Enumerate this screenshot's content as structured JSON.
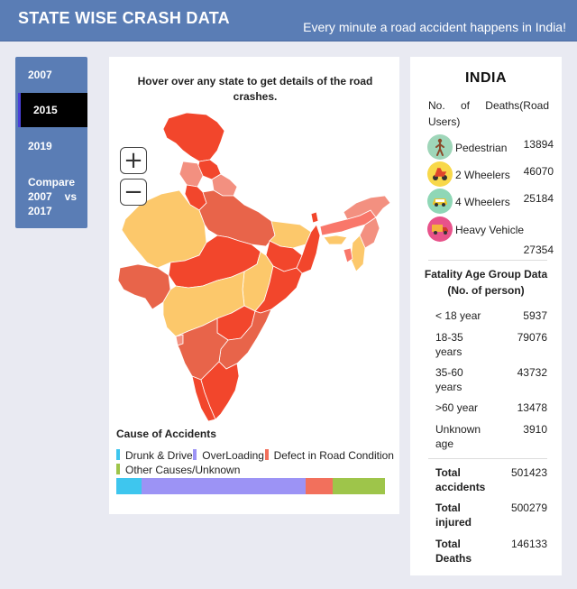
{
  "header": {
    "title": "STATE WISE CRASH DATA",
    "tagline": "Every minute a road accident happens in India!"
  },
  "nav": {
    "items": [
      {
        "label": "2007"
      },
      {
        "label": "2015",
        "active": true
      },
      {
        "label": "2019"
      },
      {
        "label_line1": "Compare",
        "label_line2a": "2007",
        "label_line2b": "vs",
        "label_line3": "2017"
      }
    ]
  },
  "map": {
    "hint": "Hover over any state to get details of the road crashes.",
    "zoom_in": "+",
    "zoom_out": "−",
    "colors": [
      "#f2462c",
      "#e8644a",
      "#f39080",
      "#fcc86b",
      "#f9776a"
    ]
  },
  "causes": {
    "title": "Cause of Accidents",
    "legend": [
      {
        "label": "Drunk & Drive",
        "color": "#3ec6ee"
      },
      {
        "label": "OverLoading",
        "color": "#9c93f5"
      },
      {
        "label": "Defect in Road Condition",
        "color": "#f2705c"
      },
      {
        "label": "Other Causes/Unknown",
        "color": "#9ec54a"
      }
    ],
    "shares": [
      0.095,
      0.61,
      0.1,
      0.195
    ]
  },
  "summary": {
    "country": "INDIA",
    "deaths_heading": "No. of Deaths(Road Users)",
    "road_users": [
      {
        "label": "Pedestrian",
        "value": "13894",
        "icon": "pedestrian-icon",
        "bg": "#9fd6b9"
      },
      {
        "label": "2 Wheelers",
        "value": "46070",
        "icon": "scooter-icon",
        "bg": "#f8d84a"
      },
      {
        "label": "4 Wheelers",
        "value": "25184",
        "icon": "car-icon",
        "bg": "#8fd7b6"
      },
      {
        "label": "Heavy Vehicle",
        "value": "27354",
        "icon": "truck-icon",
        "bg": "#e8528a"
      }
    ],
    "age_heading": "Fatality Age Group Data (No. of person)",
    "age_groups": [
      {
        "label": "< 18 year",
        "value": "5937"
      },
      {
        "label": "18-35 years",
        "value": "79076"
      },
      {
        "label": "35-60 years",
        "value": "43732"
      },
      {
        "label": ">60 year",
        "value": "13478"
      },
      {
        "label": "Unknown age",
        "value": "3910"
      }
    ],
    "totals": [
      {
        "label": "Total accidents",
        "value": "501423"
      },
      {
        "label": "Total injured",
        "value": "500279"
      },
      {
        "label": "Total Deaths",
        "value": "146133"
      }
    ]
  }
}
